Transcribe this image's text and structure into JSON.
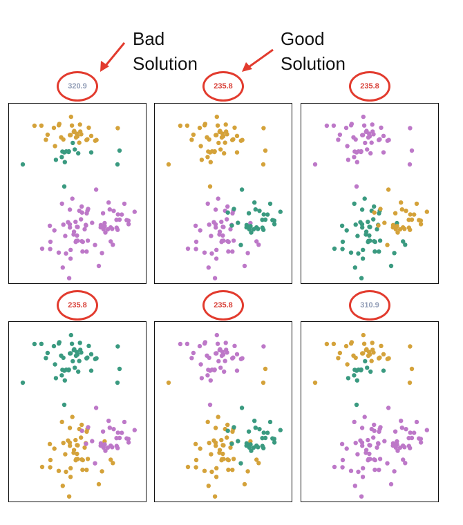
{
  "annotations": {
    "bad": [
      "Bad",
      "Solution"
    ],
    "good": [
      "Good",
      "Solution"
    ]
  },
  "colors": {
    "orange": "#d4a23a",
    "teal": "#3a9a80",
    "purple": "#bd78c8",
    "ring": "#e23b2e",
    "score_bad": "#8f9bb5",
    "score_good": "#d84038"
  },
  "panels": [
    {
      "score": "320.9",
      "quality": "bad",
      "upper": "orange",
      "mid": "teal",
      "lower": "purple",
      "lower_right": "purple",
      "outlier": "teal"
    },
    {
      "score": "235.8",
      "quality": "good",
      "upper": "orange",
      "mid": "orange",
      "lower": "purple",
      "lower_right": "teal",
      "outlier": "orange"
    },
    {
      "score": "235.8",
      "quality": "good",
      "upper": "purple",
      "mid": "purple",
      "lower": "teal",
      "lower_right": "orange",
      "outlier": "purple"
    },
    {
      "score": "235.8",
      "quality": "good",
      "upper": "teal",
      "mid": "teal",
      "lower": "orange",
      "lower_right": "purple",
      "outlier": "teal"
    },
    {
      "score": "235.8",
      "quality": "good",
      "upper": "purple",
      "mid": "purple",
      "lower": "orange",
      "lower_right": "teal",
      "outlier": "orange"
    },
    {
      "score": "310.9",
      "quality": "bad",
      "upper": "orange",
      "mid": "teal",
      "lower": "purple",
      "lower_right": "purple",
      "outlier": "orange"
    }
  ]
}
